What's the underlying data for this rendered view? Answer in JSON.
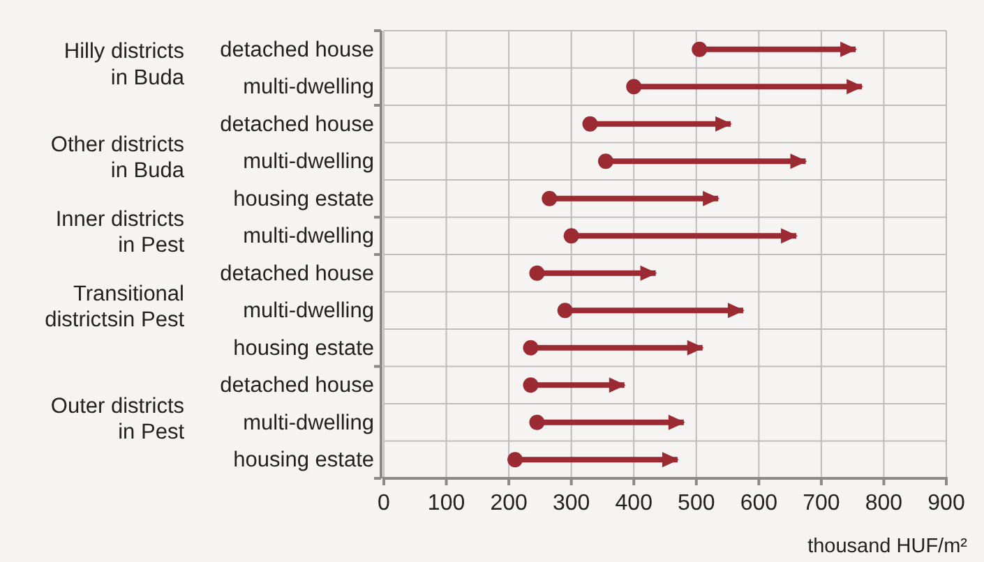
{
  "chart_data": {
    "type": "bar",
    "orientation": "horizontal",
    "xlabel": "thousand HUF/m²",
    "categories": [
      "detached house",
      "multi-dwelling",
      "detached house",
      "multi-dwelling",
      "housing estate",
      "multi-dwelling",
      "detached house",
      "multi-dwelling",
      "housing estate",
      "detached house",
      "multi-dwelling",
      "housing estate"
    ],
    "base": [
      505,
      400,
      330,
      355,
      265,
      300,
      245,
      290,
      235,
      235,
      245,
      210
    ],
    "values": [
      250,
      365,
      225,
      320,
      270,
      360,
      190,
      285,
      275,
      150,
      235,
      260
    ],
    "color": "#9b2a32",
    "marker": "circle",
    "xlim": [
      0,
      900
    ],
    "xticks": [
      0,
      100,
      200,
      300,
      400,
      500,
      600,
      700,
      800,
      900
    ],
    "grid": true,
    "annotations": [
      "Hilly districts\nin Buda",
      "Other districts\nin Buda",
      "Inner districts\nin Pest",
      "Transitional\ndistrictsin Pest",
      "Outer districts\nin Pest"
    ]
  }
}
